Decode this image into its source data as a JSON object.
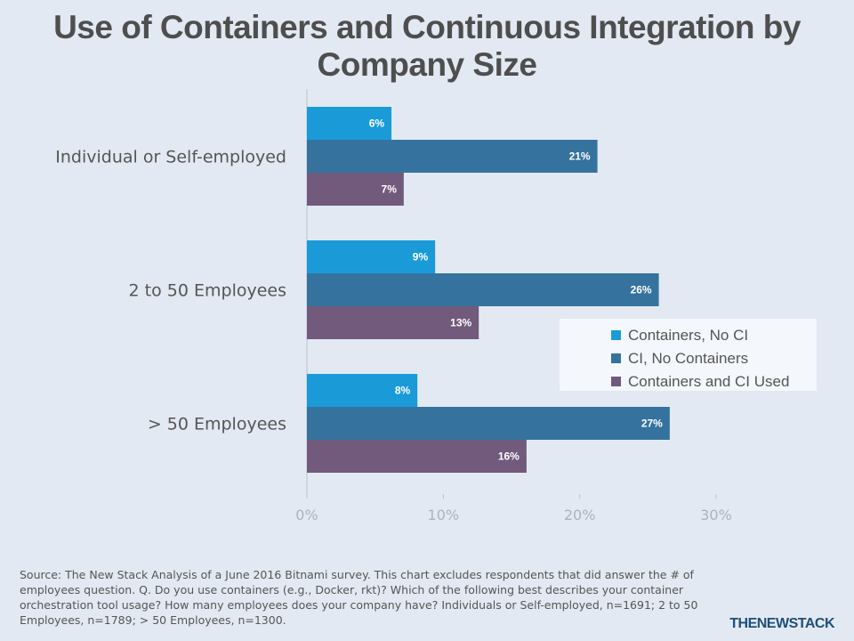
{
  "chart_data": {
    "type": "bar",
    "orientation": "horizontal",
    "title": "Use of Containers and Continuous Integration by Company Size",
    "categories": [
      "Individual or Self-employed",
      "2 to 50 Employees",
      "> 50 Employees"
    ],
    "series": [
      {
        "name": "Containers, No CI",
        "color": "#1a9bd7",
        "values": [
          6.2,
          9.4,
          8.1
        ],
        "labels": [
          "6%",
          "9%",
          "8%"
        ]
      },
      {
        "name": "CI, No Containers",
        "color": "#35739e",
        "values": [
          21.3,
          25.8,
          26.6
        ],
        "labels": [
          "21%",
          "26%",
          "27%"
        ]
      },
      {
        "name": "Containers and CI Used",
        "color": "#715a7c",
        "values": [
          7.1,
          12.6,
          16.1
        ],
        "labels": [
          "7%",
          "13%",
          "16%"
        ]
      }
    ],
    "xlim": [
      0,
      30
    ],
    "xticks": [
      "0%",
      "10%",
      "20%",
      "30%"
    ],
    "xtick_values": [
      0,
      10,
      20,
      30
    ],
    "grid": false,
    "legend_position": "right"
  },
  "source_text": "Source: The New Stack Analysis of a June 2016 Bitnami survey. This chart excludes respondents that did answer the # of employees question. Q. Do you use containers (e.g., Docker, rkt)? Which of the following best describes your container orchestration tool usage? How many employees does your company have? Individuals or Self-employed, n=1691; 2 to 50 Employees, n=1789; > 50 Employees, n=1300.",
  "brand": "THENEWSTACK",
  "colors": {
    "background": "#e3e9f2",
    "legend_bg": "#f4f7fb"
  }
}
